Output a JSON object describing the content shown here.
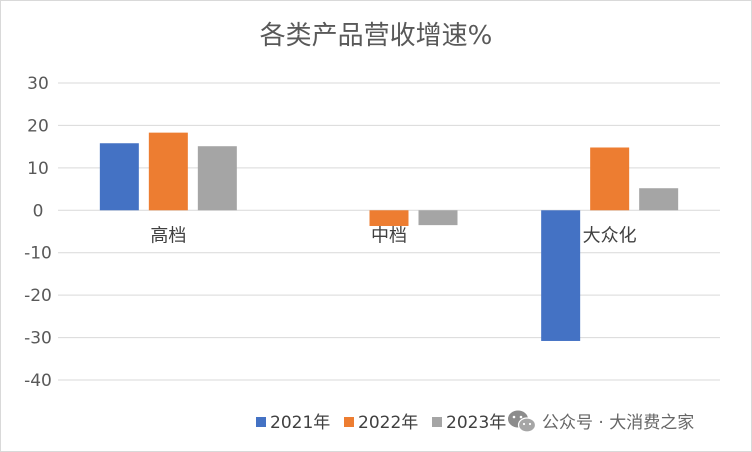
{
  "chart_data": {
    "type": "bar",
    "title": "各类产品营收增速%",
    "categories": [
      "高档",
      "中档",
      "大众化"
    ],
    "series": [
      {
        "name": "2021年",
        "color": "#4472C4",
        "values": [
          15.8,
          null,
          -30.8
        ]
      },
      {
        "name": "2022年",
        "color": "#ED7D31",
        "values": [
          18.3,
          -3.7,
          14.8
        ]
      },
      {
        "name": "2023年",
        "color": "#A5A5A5",
        "values": [
          15.1,
          -3.5,
          5.2
        ]
      }
    ],
    "ylim": [
      -40,
      30
    ],
    "yticks": [
      30,
      20,
      10,
      0,
      -10,
      -20,
      -30,
      -40
    ],
    "xlabel": "",
    "ylabel": "",
    "grid": true,
    "legend_position": "bottom"
  },
  "watermark": {
    "icon": "wechat-icon",
    "text": "公众号 · 大消费之家"
  }
}
